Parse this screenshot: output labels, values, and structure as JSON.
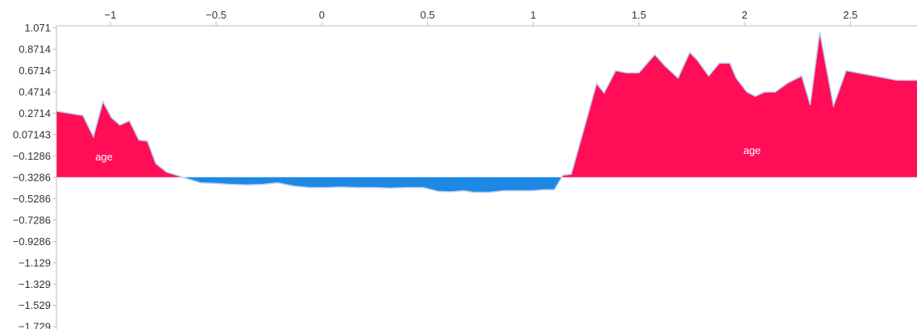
{
  "chart_data": {
    "type": "area",
    "title": "",
    "xlabel": "",
    "ylabel": "",
    "xlim": [
      -1.255,
      2.815
    ],
    "ylim": [
      -1.75,
      1.09
    ],
    "baseline": -0.3286,
    "x_ticks": [
      -1,
      -0.5,
      0,
      0.5,
      1,
      1.5,
      2,
      2.5
    ],
    "x_tick_labels": [
      "−1",
      "−0.5",
      "0",
      "0.5",
      "1",
      "1.5",
      "2",
      "2.5"
    ],
    "y_ticks": [
      1.071,
      0.8714,
      0.6714,
      0.4714,
      0.2714,
      0.07143,
      -0.1286,
      -0.3286,
      -0.5286,
      -0.7286,
      -0.9286,
      -1.129,
      -1.329,
      -1.529,
      -1.729
    ],
    "y_tick_labels": [
      "1.071",
      "0.8714",
      "0.6714",
      "0.4714",
      "0.2714",
      "0.07143",
      "−0.1286",
      "−0.3286",
      "−0.5286",
      "−0.7286",
      "−0.9286",
      "−1.129",
      "−1.329",
      "−1.529",
      "−1.729"
    ],
    "series": [
      {
        "name": "age",
        "values": [
          [
            -1.255,
            0.29
          ],
          [
            -1.13,
            0.25
          ],
          [
            -1.08,
            0.05
          ],
          [
            -1.035,
            0.38
          ],
          [
            -0.995,
            0.23
          ],
          [
            -0.955,
            0.16
          ],
          [
            -0.91,
            0.2
          ],
          [
            -0.865,
            0.02
          ],
          [
            -0.825,
            0.01
          ],
          [
            -0.785,
            -0.2
          ],
          [
            -0.735,
            -0.28
          ],
          [
            -0.575,
            -0.38
          ],
          [
            -0.51,
            -0.385
          ],
          [
            -0.43,
            -0.395
          ],
          [
            -0.355,
            -0.4
          ],
          [
            -0.28,
            -0.395
          ],
          [
            -0.21,
            -0.38
          ],
          [
            -0.135,
            -0.41
          ],
          [
            -0.06,
            -0.425
          ],
          [
            0.02,
            -0.425
          ],
          [
            0.09,
            -0.42
          ],
          [
            0.17,
            -0.425
          ],
          [
            0.25,
            -0.425
          ],
          [
            0.32,
            -0.43
          ],
          [
            0.4,
            -0.425
          ],
          [
            0.48,
            -0.425
          ],
          [
            0.55,
            -0.46
          ],
          [
            0.61,
            -0.465
          ],
          [
            0.67,
            -0.455
          ],
          [
            0.72,
            -0.47
          ],
          [
            0.79,
            -0.47
          ],
          [
            0.86,
            -0.455
          ],
          [
            0.93,
            -0.455
          ],
          [
            0.99,
            -0.455
          ],
          [
            1.05,
            -0.445
          ],
          [
            1.1,
            -0.445
          ],
          [
            1.14,
            -0.31
          ],
          [
            1.18,
            -0.3
          ],
          [
            1.3,
            0.55
          ],
          [
            1.335,
            0.46
          ],
          [
            1.39,
            0.67
          ],
          [
            1.44,
            0.65
          ],
          [
            1.5,
            0.65
          ],
          [
            1.575,
            0.82
          ],
          [
            1.62,
            0.72
          ],
          [
            1.685,
            0.6
          ],
          [
            1.74,
            0.84
          ],
          [
            1.775,
            0.77
          ],
          [
            1.83,
            0.62
          ],
          [
            1.88,
            0.74
          ],
          [
            1.93,
            0.74
          ],
          [
            1.96,
            0.6
          ],
          [
            2.01,
            0.47
          ],
          [
            2.05,
            0.43
          ],
          [
            2.095,
            0.47
          ],
          [
            2.145,
            0.47
          ],
          [
            2.2,
            0.55
          ],
          [
            2.27,
            0.62
          ],
          [
            2.31,
            0.35
          ],
          [
            2.355,
            1.03
          ],
          [
            2.42,
            0.34
          ],
          [
            2.48,
            0.67
          ],
          [
            2.615,
            0.62
          ],
          [
            2.72,
            0.58
          ],
          [
            2.815,
            0.58
          ]
        ]
      }
    ],
    "area_labels": [
      {
        "text": "age",
        "x": -1.03,
        "y": -0.17
      },
      {
        "text": "age",
        "x": 2.035,
        "y": -0.11
      }
    ],
    "colors": {
      "positive": "#ff0d57",
      "negative": "#1e88e5",
      "outline": "#b8cdf0",
      "axis": "#bbbbbb",
      "text": "#333333"
    }
  }
}
